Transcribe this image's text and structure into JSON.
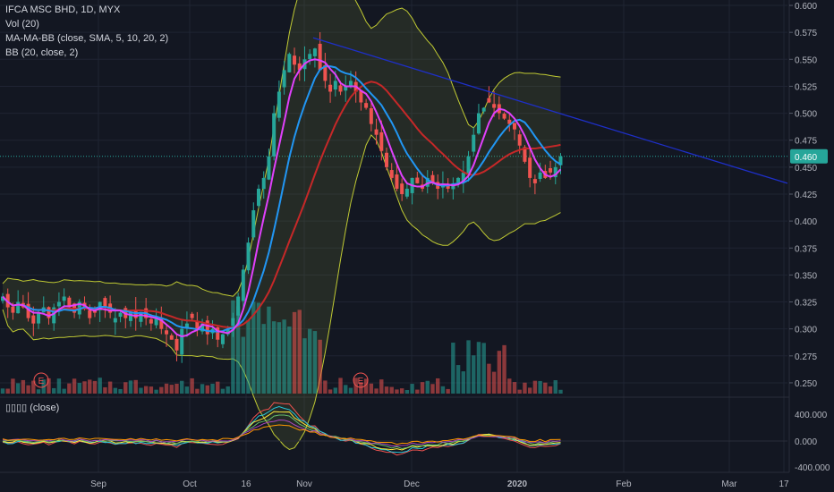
{
  "header": {
    "symbol_line": "IFCA MSC BHD, 1D, MYX",
    "indicators": [
      "Vol (20)",
      "MA-MA-BB (close, SMA, 5, 10, 20, 2)",
      "BB (20, close, 2)"
    ]
  },
  "oscillator": {
    "label": "▯▯▯▯ (close)",
    "ticks": [
      "400.000",
      "0.000",
      "-400.000"
    ]
  },
  "price_badge": {
    "value": "0.460",
    "color": "#26a69a"
  },
  "earnings_markers": [
    "E",
    "E"
  ],
  "colors": {
    "background": "#131722",
    "up": "#26a69a",
    "down": "#ef5350",
    "sma5": "#e040fb",
    "sma10": "#2196f3",
    "sma20": "#c62828",
    "bb_band": "#c0ca33",
    "trendline": "#1e2fc8"
  },
  "chart_data": {
    "type": "candlestick",
    "title": "IFCA MSC BHD, 1D, MYX",
    "y_ticks": [
      "0.600",
      "0.575",
      "0.550",
      "0.525",
      "0.500",
      "0.475",
      "0.450",
      "0.425",
      "0.400",
      "0.375",
      "0.350",
      "0.325",
      "0.300",
      "0.275",
      "0.250"
    ],
    "ylim": [
      0.24,
      0.605
    ],
    "x_ticks": [
      "Sep",
      "Oct",
      "16",
      "Nov",
      "Dec",
      "2020",
      "Feb",
      "Mar",
      "17"
    ],
    "close": [
      0.33,
      0.32,
      0.315,
      0.325,
      0.32,
      0.31,
      0.305,
      0.315,
      0.32,
      0.31,
      0.32,
      0.325,
      0.33,
      0.32,
      0.315,
      0.325,
      0.32,
      0.31,
      0.315,
      0.325,
      0.32,
      0.315,
      0.31,
      0.315,
      0.31,
      0.315,
      0.31,
      0.315,
      0.31,
      0.305,
      0.31,
      0.3,
      0.295,
      0.29,
      0.28,
      0.3,
      0.305,
      0.31,
      0.3,
      0.305,
      0.295,
      0.3,
      0.29,
      0.295,
      0.3,
      0.31,
      0.33,
      0.355,
      0.38,
      0.41,
      0.43,
      0.44,
      0.46,
      0.5,
      0.52,
      0.54,
      0.555,
      0.545,
      0.54,
      0.55,
      0.555,
      0.56,
      0.54,
      0.53,
      0.52,
      0.53,
      0.52,
      0.525,
      0.53,
      0.52,
      0.51,
      0.505,
      0.49,
      0.48,
      0.465,
      0.45,
      0.44,
      0.43,
      0.425,
      0.43,
      0.44,
      0.435,
      0.43,
      0.44,
      0.435,
      0.43,
      0.435,
      0.43,
      0.435,
      0.44,
      0.445,
      0.46,
      0.48,
      0.5,
      0.505,
      0.51,
      0.505,
      0.5,
      0.495,
      0.49,
      0.485,
      0.47,
      0.455,
      0.44,
      0.435,
      0.445,
      0.44,
      0.445,
      0.45,
      0.46
    ],
    "series": [
      {
        "name": "Volume"
      },
      {
        "name": "SMA 5"
      },
      {
        "name": "SMA 10"
      },
      {
        "name": "SMA 20"
      },
      {
        "name": "BB (20, close, 2)"
      }
    ],
    "trendline": {
      "from": [
        0.57
      ],
      "to": [
        0.435
      ]
    },
    "last_price": 0.46,
    "grid": true,
    "legend": "top-left"
  }
}
